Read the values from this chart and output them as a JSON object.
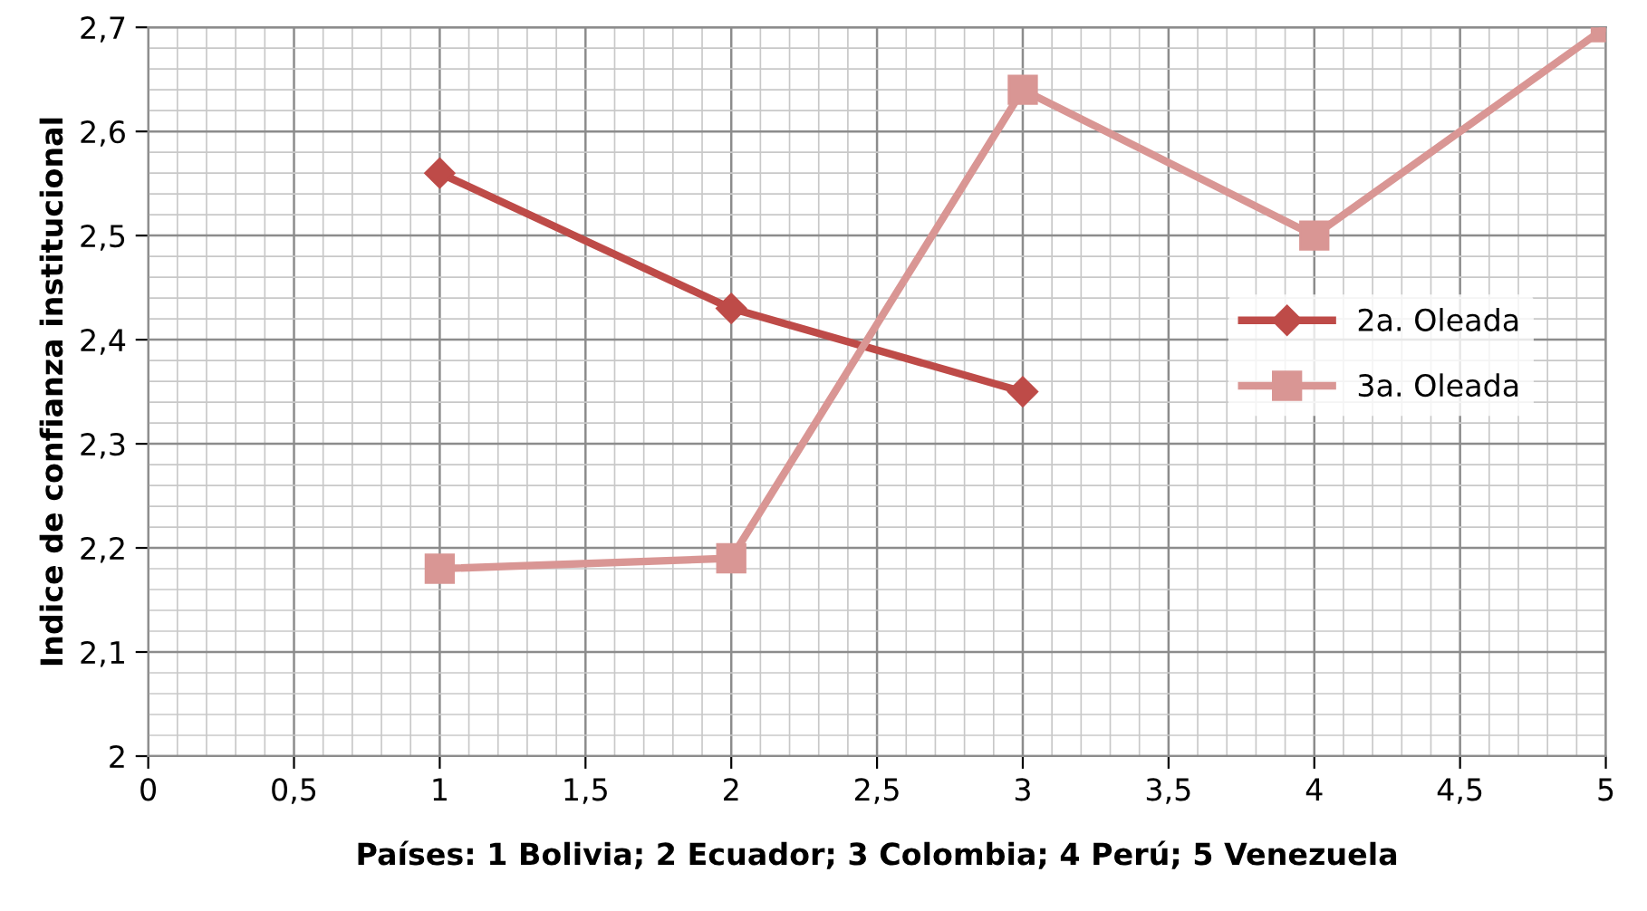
{
  "chart_data": {
    "type": "line",
    "xlabel": "Países: 1 Bolivia; 2 Ecuador; 3 Colombia; 4 Perú; 5 Venezuela",
    "ylabel": "Indice de confianza institucional",
    "xlim": [
      0,
      5
    ],
    "xticks": [
      {
        "value": 0,
        "label": "0"
      },
      {
        "value": 0.5,
        "label": "0,5"
      },
      {
        "value": 1,
        "label": "1"
      },
      {
        "value": 1.5,
        "label": "1,5"
      },
      {
        "value": 2,
        "label": "2"
      },
      {
        "value": 2.5,
        "label": "2,5"
      },
      {
        "value": 3,
        "label": "3"
      },
      {
        "value": 3.5,
        "label": "3,5"
      },
      {
        "value": 4,
        "label": "4"
      },
      {
        "value": 4.5,
        "label": "4,5"
      },
      {
        "value": 5,
        "label": "5"
      }
    ],
    "ylim": [
      2,
      2.7
    ],
    "yticks": [
      {
        "value": 2,
        "label": "2"
      },
      {
        "value": 2.1,
        "label": "2,1"
      },
      {
        "value": 2.2,
        "label": "2,2"
      },
      {
        "value": 2.3,
        "label": "2,3"
      },
      {
        "value": 2.4,
        "label": "2,4"
      },
      {
        "value": 2.5,
        "label": "2,5"
      },
      {
        "value": 2.6,
        "label": "2,6"
      },
      {
        "value": 2.7,
        "label": "2,7"
      }
    ],
    "grid": true,
    "legend": "right",
    "series": [
      {
        "name": "2a. Oleada",
        "color": "#be4b48",
        "marker": "diamond",
        "x": [
          1,
          2,
          3
        ],
        "values": [
          2.56,
          2.43,
          2.35
        ]
      },
      {
        "name": "3a. Oleada",
        "color": "#d99694",
        "marker": "square",
        "x": [
          1,
          2,
          3,
          4,
          5
        ],
        "values": [
          2.18,
          2.19,
          2.64,
          2.5,
          2.7
        ]
      }
    ]
  }
}
